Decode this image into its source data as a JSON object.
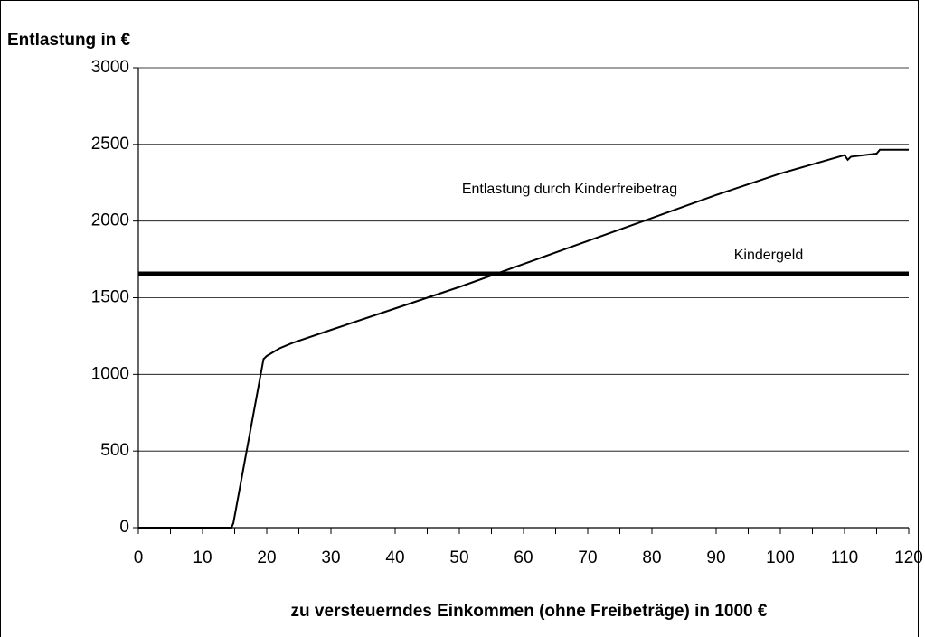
{
  "chart_data": {
    "type": "line",
    "title": "Entlastung in €",
    "xlabel": "zu versteuerndes Einkommen (ohne Freibeträge) in 1000 €",
    "series": [
      {
        "name": "Entlastung durch Kinderfreibetrag",
        "color": "#000000",
        "width": 2,
        "x": [
          0,
          14.5,
          14.8,
          19.5,
          20,
          22,
          24,
          30,
          40,
          50,
          60,
          70,
          80,
          90,
          100,
          110,
          110.5,
          111,
          115,
          115.5,
          120
        ],
        "values": [
          0,
          0,
          30,
          1100,
          1120,
          1170,
          1205,
          1290,
          1430,
          1570,
          1720,
          1870,
          2020,
          2170,
          2310,
          2430,
          2400,
          2420,
          2440,
          2465,
          2465
        ]
      },
      {
        "name": "Kindergeld",
        "color": "#000000",
        "width": 5,
        "x": [
          0,
          120
        ],
        "values": [
          1656,
          1656
        ]
      }
    ],
    "xlim": [
      0,
      120
    ],
    "xticks": [
      0,
      10,
      20,
      30,
      40,
      50,
      60,
      70,
      80,
      90,
      100,
      110,
      120
    ],
    "ylim": [
      0,
      3000
    ],
    "yticks": [
      0,
      500,
      1000,
      1500,
      2000,
      2500,
      3000
    ],
    "grid": true
  }
}
